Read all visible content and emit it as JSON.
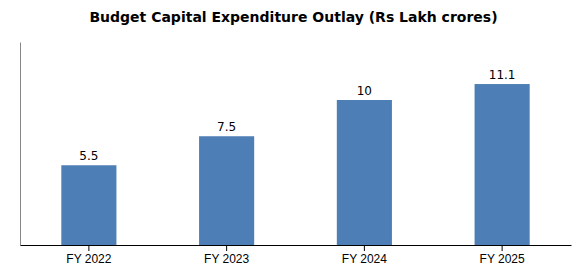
{
  "chart_data": {
    "type": "bar",
    "title": "Budget Capital Expenditure Outlay (Rs Lakh crores)",
    "categories": [
      "FY 2022",
      "FY 2023",
      "FY 2024",
      "FY 2025"
    ],
    "values": [
      5.5,
      7.5,
      10,
      11.1
    ],
    "color": "#4d7eb5",
    "ylim": [
      0,
      14
    ],
    "grid": false,
    "data_labels": true,
    "tick_labels": "x"
  }
}
